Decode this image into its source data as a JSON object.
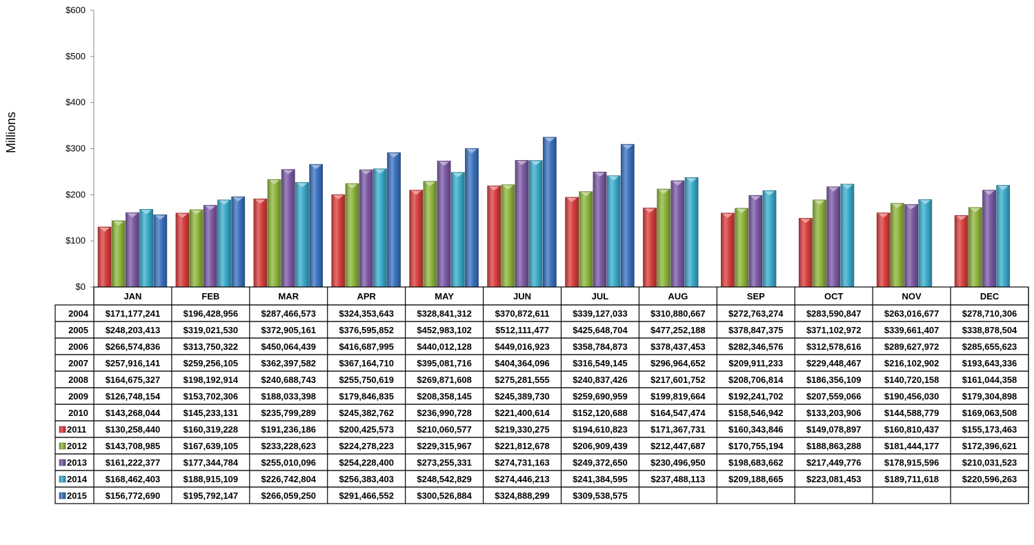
{
  "chart_data": {
    "type": "bar",
    "ylabel": "Millions",
    "ylim": [
      0,
      600
    ],
    "y_ticks": [
      "$0",
      "$100",
      "$200",
      "$300",
      "$400",
      "$500",
      "$600"
    ],
    "categories": [
      "JAN",
      "FEB",
      "MAR",
      "APR",
      "MAY",
      "JUN",
      "JUL",
      "AUG",
      "SEP",
      "OCT",
      "NOV",
      "DEC"
    ],
    "grid": false,
    "legend": "in data table rows",
    "series": [
      {
        "name": "2004",
        "plotted": false,
        "values": [
          171177241,
          196428956,
          287466573,
          324353643,
          328841312,
          370872611,
          339127033,
          310880667,
          272763274,
          283590847,
          263016677,
          278710306
        ],
        "labels": [
          "$171,177,241",
          "$196,428,956",
          "$287,466,573",
          "$324,353,643",
          "$328,841,312",
          "$370,872,611",
          "$339,127,033",
          "$310,880,667",
          "$272,763,274",
          "$283,590,847",
          "$263,016,677",
          "$278,710,306"
        ]
      },
      {
        "name": "2005",
        "plotted": false,
        "values": [
          248203413,
          319021530,
          372905161,
          376595852,
          452983102,
          512111477,
          425648704,
          477252188,
          378847375,
          371102972,
          339661407,
          338878504
        ],
        "labels": [
          "$248,203,413",
          "$319,021,530",
          "$372,905,161",
          "$376,595,852",
          "$452,983,102",
          "$512,111,477",
          "$425,648,704",
          "$477,252,188",
          "$378,847,375",
          "$371,102,972",
          "$339,661,407",
          "$338,878,504"
        ]
      },
      {
        "name": "2006",
        "plotted": false,
        "values": [
          266574836,
          313750322,
          450064439,
          416687995,
          440012128,
          449016923,
          358784873,
          378437453,
          282346576,
          312578616,
          289627972,
          285655623
        ],
        "labels": [
          "$266,574,836",
          "$313,750,322",
          "$450,064,439",
          "$416,687,995",
          "$440,012,128",
          "$449,016,923",
          "$358,784,873",
          "$378,437,453",
          "$282,346,576",
          "$312,578,616",
          "$289,627,972",
          "$285,655,623"
        ]
      },
      {
        "name": "2007",
        "plotted": false,
        "values": [
          257916141,
          259256105,
          362397582,
          367164710,
          395081716,
          404364096,
          316549145,
          296964652,
          209911233,
          229448467,
          216102902,
          193643336
        ],
        "labels": [
          "$257,916,141",
          "$259,256,105",
          "$362,397,582",
          "$367,164,710",
          "$395,081,716",
          "$404,364,096",
          "$316,549,145",
          "$296,964,652",
          "$209,911,233",
          "$229,448,467",
          "$216,102,902",
          "$193,643,336"
        ]
      },
      {
        "name": "2008",
        "plotted": false,
        "values": [
          164675327,
          198192914,
          240688743,
          255750619,
          269871608,
          275281555,
          240837426,
          217601752,
          208706814,
          186356109,
          140720158,
          161044358
        ],
        "labels": [
          "$164,675,327",
          "$198,192,914",
          "$240,688,743",
          "$255,750,619",
          "$269,871,608",
          "$275,281,555",
          "$240,837,426",
          "$217,601,752",
          "$208,706,814",
          "$186,356,109",
          "$140,720,158",
          "$161,044,358"
        ]
      },
      {
        "name": "2009",
        "plotted": false,
        "values": [
          126748154,
          153702306,
          188033398,
          179846835,
          208358145,
          245389730,
          259690959,
          199819664,
          192241702,
          207559066,
          190456030,
          179304898
        ],
        "labels": [
          "$126,748,154",
          "$153,702,306",
          "$188,033,398",
          "$179,846,835",
          "$208,358,145",
          "$245,389,730",
          "$259,690,959",
          "$199,819,664",
          "$192,241,702",
          "$207,559,066",
          "$190,456,030",
          "$179,304,898"
        ]
      },
      {
        "name": "2010",
        "plotted": false,
        "values": [
          143268044,
          145233131,
          235799289,
          245382762,
          236990728,
          221400614,
          152120688,
          164547474,
          158546942,
          133203906,
          144588779,
          169063508
        ],
        "labels": [
          "$143,268,044",
          "$145,233,131",
          "$235,799,289",
          "$245,382,762",
          "$236,990,728",
          "$221,400,614",
          "$152,120,688",
          "$164,547,474",
          "$158,546,942",
          "$133,203,906",
          "$144,588,779",
          "$169,063,508"
        ]
      },
      {
        "name": "2011",
        "plotted": true,
        "color": "#d9403e",
        "values": [
          130258440,
          160319228,
          191236186,
          200425573,
          210060577,
          219330275,
          194610823,
          171367731,
          160343846,
          149078897,
          160810437,
          155173463
        ],
        "labels": [
          "$130,258,440",
          "$160,319,228",
          "$191,236,186",
          "$200,425,573",
          "$210,060,577",
          "$219,330,275",
          "$194,610,823",
          "$171,367,731",
          "$160,343,846",
          "$149,078,897",
          "$160,810,437",
          "$155,173,463"
        ]
      },
      {
        "name": "2012",
        "plotted": true,
        "color": "#8fb63d",
        "values": [
          143708985,
          167639105,
          233228623,
          224278223,
          229315967,
          221812678,
          206909439,
          212447687,
          170755194,
          188863288,
          181444177,
          172396621
        ],
        "labels": [
          "$143,708,985",
          "$167,639,105",
          "$233,228,623",
          "$224,278,223",
          "$229,315,967",
          "$221,812,678",
          "$206,909,439",
          "$212,447,687",
          "$170,755,194",
          "$188,863,288",
          "$181,444,177",
          "$172,396,621"
        ]
      },
      {
        "name": "2013",
        "plotted": true,
        "color": "#7d5ba6",
        "values": [
          161222377,
          177344784,
          255010096,
          254228400,
          273255331,
          274731163,
          249372650,
          230496950,
          198683662,
          217449776,
          178915596,
          210031523
        ],
        "labels": [
          "$161,222,377",
          "$177,344,784",
          "$255,010,096",
          "$254,228,400",
          "$273,255,331",
          "$274,731,163",
          "$249,372,650",
          "$230,496,950",
          "$198,683,662",
          "$217,449,776",
          "$178,915,596",
          "$210,031,523"
        ]
      },
      {
        "name": "2014",
        "plotted": true,
        "color": "#3caccc",
        "values": [
          168462403,
          188915109,
          226742804,
          256383403,
          248542829,
          274446213,
          241384595,
          237488113,
          209188665,
          223081453,
          189711618,
          220596263
        ],
        "labels": [
          "$168,462,403",
          "$188,915,109",
          "$226,742,804",
          "$256,383,403",
          "$248,542,829",
          "$274,446,213",
          "$241,384,595",
          "$237,488,113",
          "$209,188,665",
          "$223,081,453",
          "$189,711,618",
          "$220,596,263"
        ]
      },
      {
        "name": "2015",
        "plotted": true,
        "color": "#3c73c0",
        "values": [
          156772690,
          195792147,
          266059250,
          291466552,
          300526884,
          324888299,
          309538575,
          null,
          null,
          null,
          null,
          null
        ],
        "labels": [
          "$156,772,690",
          "$195,792,147",
          "$266,059,250",
          "$291,466,552",
          "$300,526,884",
          "$324,888,299",
          "$309,538,575",
          "",
          "",
          "",
          "",
          ""
        ]
      }
    ]
  }
}
